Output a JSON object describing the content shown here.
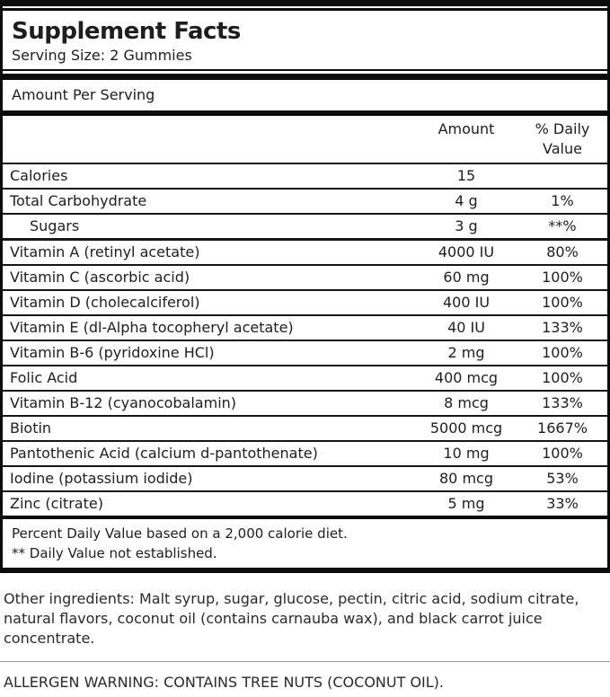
{
  "label": {
    "title": "Supplement Facts",
    "serving_size": "Serving Size: 2 Gummies",
    "section_header": "Amount Per Serving",
    "table": {
      "column_headers": {
        "amount": "Amount",
        "daily_value": "% Daily Value"
      },
      "rows": [
        {
          "name": "Calories",
          "amount": "15",
          "daily_value": ""
        },
        {
          "name": "Total Carbohydrate",
          "amount": "4 g",
          "daily_value": "1%"
        },
        {
          "name": "Sugars",
          "amount": "3 g",
          "daily_value": "**%",
          "indent": true
        },
        {
          "name": "Vitamin A (retinyl acetate)",
          "amount": "4000 IU",
          "daily_value": "80%",
          "thick_separator_above": true
        },
        {
          "name": "Vitamin C (ascorbic acid)",
          "amount": "60 mg",
          "daily_value": "100%"
        },
        {
          "name": "Vitamin D (cholecalciferol)",
          "amount": "400 IU",
          "daily_value": "100%"
        },
        {
          "name": "Vitamin E (dl-Alpha tocopheryl acetate)",
          "amount": "40 IU",
          "daily_value": "133%"
        },
        {
          "name": "Vitamin B-6 (pyridoxine HCl)",
          "amount": "2 mg",
          "daily_value": "100%"
        },
        {
          "name": "Folic Acid",
          "amount": "400 mcg",
          "daily_value": "100%"
        },
        {
          "name": "Vitamin B-12 (cyanocobalamin)",
          "amount": "8 mcg",
          "daily_value": "133%"
        },
        {
          "name": "Biotin",
          "amount": "5000 mcg",
          "daily_value": "1667%"
        },
        {
          "name": "Pantothenic Acid (calcium d-pantothenate)",
          "amount": "10 mg",
          "daily_value": "100%"
        },
        {
          "name": "Iodine (potassium iodide)",
          "amount": "80 mcg",
          "daily_value": "53%"
        },
        {
          "name": "Zinc (citrate)",
          "amount": "5 mg",
          "daily_value": "33%"
        }
      ]
    },
    "footnotes": [
      "Percent Daily Value based on a 2,000 calorie diet.",
      "** Daily Value not established."
    ]
  },
  "other_ingredients": "Other ingredients: Malt syrup, sugar, glucose, pectin, citric acid, sodium citrate, natural flavors, coconut oil (contains carnauba wax), and black carrot juice concentrate.",
  "allergen_warning": "ALLERGEN WARNING: CONTAINS TREE NUTS (COCONUT OIL).",
  "colors": {
    "border": "#0c0c0c",
    "text": "#1e1e1e",
    "muted_divider": "#9a9a9a",
    "background": "#ffffff"
  }
}
